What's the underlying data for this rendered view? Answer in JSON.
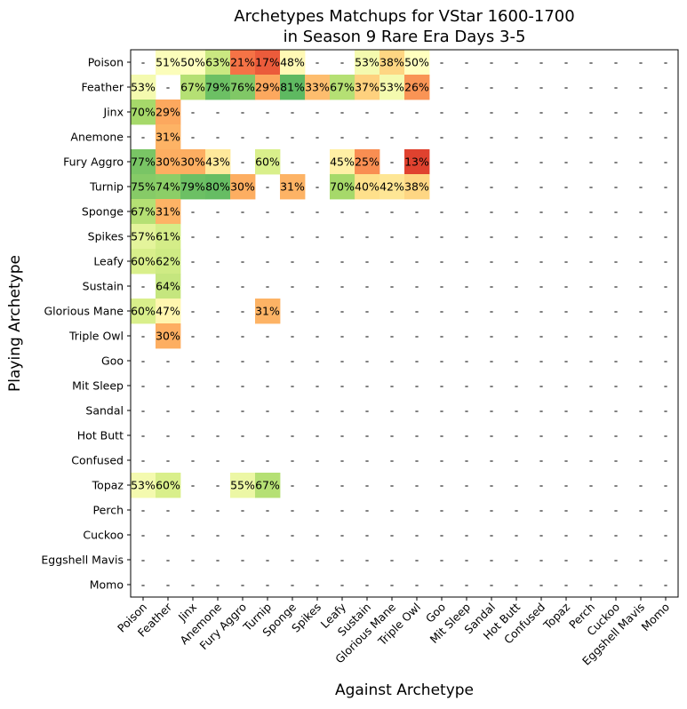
{
  "chart_data": {
    "type": "heatmap",
    "title": [
      "Archetypes Matchups for VStar 1600-1700",
      "in Season 9 Rare Era Days 3-5"
    ],
    "xlabel": "Against Archetype",
    "ylabel": "Playing Archetype",
    "rows": [
      "Poison",
      "Feather",
      "Jinx",
      "Anemone",
      "Fury Aggro",
      "Turnip",
      "Sponge",
      "Spikes",
      "Leafy",
      "Sustain",
      "Glorious Mane",
      "Triple Owl",
      "Goo",
      "Mit Sleep",
      "Sandal",
      "Hot Butt",
      "Confused",
      "Topaz",
      "Perch",
      "Cuckoo",
      "Eggshell Mavis",
      "Momo"
    ],
    "columns": [
      "Poison",
      "Feather",
      "Jinx",
      "Anemone",
      "Fury Aggro",
      "Turnip",
      "Sponge",
      "Spikes",
      "Leafy",
      "Sustain",
      "Glorious Mane",
      "Triple Owl",
      "Goo",
      "Mit Sleep",
      "Sandal",
      "Hot Butt",
      "Confused",
      "Topaz",
      "Perch",
      "Cuckoo",
      "Eggshell Mavis",
      "Momo"
    ],
    "missing_label": "-",
    "values": [
      [
        null,
        51,
        50,
        63,
        21,
        17,
        48,
        null,
        null,
        53,
        38,
        50,
        null,
        null,
        null,
        null,
        null,
        null,
        null,
        null,
        null,
        null
      ],
      [
        53,
        null,
        67,
        79,
        76,
        29,
        81,
        33,
        67,
        37,
        53,
        26,
        null,
        null,
        null,
        null,
        null,
        null,
        null,
        null,
        null,
        null
      ],
      [
        70,
        29,
        null,
        null,
        null,
        null,
        null,
        null,
        null,
        null,
        null,
        null,
        null,
        null,
        null,
        null,
        null,
        null,
        null,
        null,
        null,
        null
      ],
      [
        null,
        31,
        null,
        null,
        null,
        null,
        null,
        null,
        null,
        null,
        null,
        null,
        null,
        null,
        null,
        null,
        null,
        null,
        null,
        null,
        null,
        null
      ],
      [
        77,
        30,
        30,
        43,
        null,
        60,
        null,
        null,
        45,
        25,
        null,
        13,
        null,
        null,
        null,
        null,
        null,
        null,
        null,
        null,
        null,
        null
      ],
      [
        75,
        74,
        79,
        80,
        30,
        null,
        31,
        null,
        70,
        40,
        42,
        38,
        null,
        null,
        null,
        null,
        null,
        null,
        null,
        null,
        null,
        null
      ],
      [
        67,
        31,
        null,
        null,
        null,
        null,
        null,
        null,
        null,
        null,
        null,
        null,
        null,
        null,
        null,
        null,
        null,
        null,
        null,
        null,
        null,
        null
      ],
      [
        57,
        61,
        null,
        null,
        null,
        null,
        null,
        null,
        null,
        null,
        null,
        null,
        null,
        null,
        null,
        null,
        null,
        null,
        null,
        null,
        null,
        null
      ],
      [
        60,
        62,
        null,
        null,
        null,
        null,
        null,
        null,
        null,
        null,
        null,
        null,
        null,
        null,
        null,
        null,
        null,
        null,
        null,
        null,
        null,
        null
      ],
      [
        null,
        64,
        null,
        null,
        null,
        null,
        null,
        null,
        null,
        null,
        null,
        null,
        null,
        null,
        null,
        null,
        null,
        null,
        null,
        null,
        null,
        null
      ],
      [
        60,
        47,
        null,
        null,
        null,
        31,
        null,
        null,
        null,
        null,
        null,
        null,
        null,
        null,
        null,
        null,
        null,
        null,
        null,
        null,
        null,
        null
      ],
      [
        null,
        30,
        null,
        null,
        null,
        null,
        null,
        null,
        null,
        null,
        null,
        null,
        null,
        null,
        null,
        null,
        null,
        null,
        null,
        null,
        null,
        null
      ],
      [
        null,
        null,
        null,
        null,
        null,
        null,
        null,
        null,
        null,
        null,
        null,
        null,
        null,
        null,
        null,
        null,
        null,
        null,
        null,
        null,
        null,
        null
      ],
      [
        null,
        null,
        null,
        null,
        null,
        null,
        null,
        null,
        null,
        null,
        null,
        null,
        null,
        null,
        null,
        null,
        null,
        null,
        null,
        null,
        null,
        null
      ],
      [
        null,
        null,
        null,
        null,
        null,
        null,
        null,
        null,
        null,
        null,
        null,
        null,
        null,
        null,
        null,
        null,
        null,
        null,
        null,
        null,
        null,
        null
      ],
      [
        null,
        null,
        null,
        null,
        null,
        null,
        null,
        null,
        null,
        null,
        null,
        null,
        null,
        null,
        null,
        null,
        null,
        null,
        null,
        null,
        null,
        null
      ],
      [
        null,
        null,
        null,
        null,
        null,
        null,
        null,
        null,
        null,
        null,
        null,
        null,
        null,
        null,
        null,
        null,
        null,
        null,
        null,
        null,
        null,
        null
      ],
      [
        53,
        60,
        null,
        null,
        55,
        67,
        null,
        null,
        null,
        null,
        null,
        null,
        null,
        null,
        null,
        null,
        null,
        null,
        null,
        null,
        null,
        null
      ],
      [
        null,
        null,
        null,
        null,
        null,
        null,
        null,
        null,
        null,
        null,
        null,
        null,
        null,
        null,
        null,
        null,
        null,
        null,
        null,
        null,
        null,
        null
      ],
      [
        null,
        null,
        null,
        null,
        null,
        null,
        null,
        null,
        null,
        null,
        null,
        null,
        null,
        null,
        null,
        null,
        null,
        null,
        null,
        null,
        null,
        null
      ],
      [
        null,
        null,
        null,
        null,
        null,
        null,
        null,
        null,
        null,
        null,
        null,
        null,
        null,
        null,
        null,
        null,
        null,
        null,
        null,
        null,
        null,
        null
      ],
      [
        null,
        null,
        null,
        null,
        null,
        null,
        null,
        null,
        null,
        null,
        null,
        null,
        null,
        null,
        null,
        null,
        null,
        null,
        null,
        null,
        null,
        null
      ]
    ],
    "unshaded": [
      [
        0,
        0
      ],
      [
        1,
        1
      ]
    ],
    "value_suffix": "%",
    "colormap": "RdYlGn",
    "vrange": [
      0,
      100
    ]
  }
}
